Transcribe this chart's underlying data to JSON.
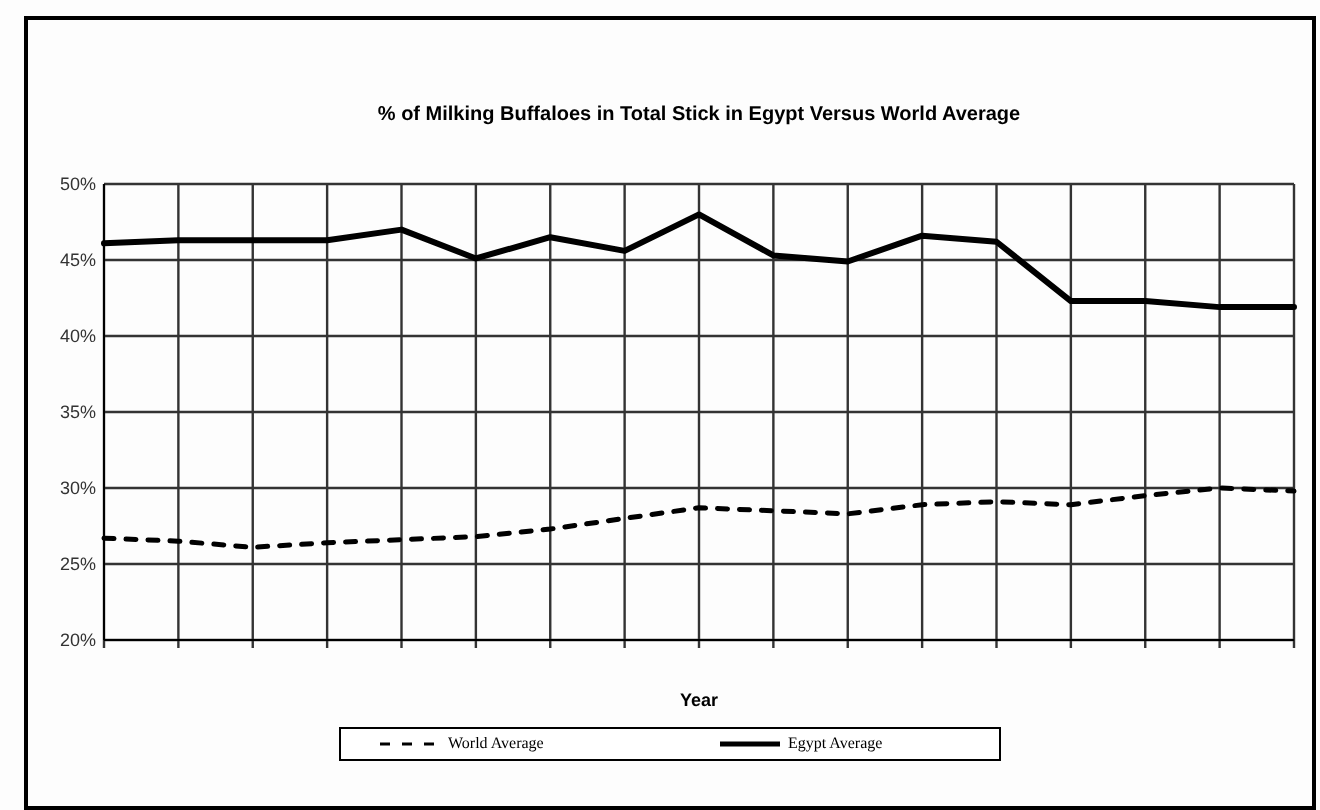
{
  "chart_data": {
    "type": "line",
    "title": "% of Milking Buffaloes in Total Stick in Egypt Versus World Average",
    "xlabel": "Year",
    "categories": [
      null,
      null,
      null,
      null,
      null,
      null,
      null,
      null,
      null,
      null,
      null,
      null,
      null,
      null,
      null,
      null,
      null
    ],
    "series": [
      {
        "name": "World Average",
        "color": "#000000",
        "line_style": "dashed",
        "values": [
          26.7,
          26.5,
          26.1,
          26.4,
          26.6,
          26.8,
          27.3,
          28.0,
          28.7,
          28.5,
          28.3,
          28.9,
          29.1,
          28.9,
          29.5,
          30.0,
          29.8
        ]
      },
      {
        "name": "Egypt Average",
        "color": "#000000",
        "line_style": "solid",
        "values": [
          46.1,
          46.3,
          46.3,
          46.3,
          47.0,
          45.1,
          46.5,
          45.6,
          48.0,
          45.3,
          44.9,
          46.6,
          46.2,
          42.3,
          42.3,
          41.9,
          41.9
        ]
      }
    ],
    "ylim": [
      20,
      50
    ],
    "yticks": [
      {
        "value": 20,
        "label": "20%"
      },
      {
        "value": 25,
        "label": "25%"
      },
      {
        "value": 30,
        "label": "30%"
      },
      {
        "value": 35,
        "label": "35%"
      },
      {
        "value": 40,
        "label": "40%"
      },
      {
        "value": 45,
        "label": "45%"
      },
      {
        "value": 50,
        "label": "50%"
      }
    ],
    "grid": true,
    "legend": "bottom",
    "marker": "none"
  }
}
